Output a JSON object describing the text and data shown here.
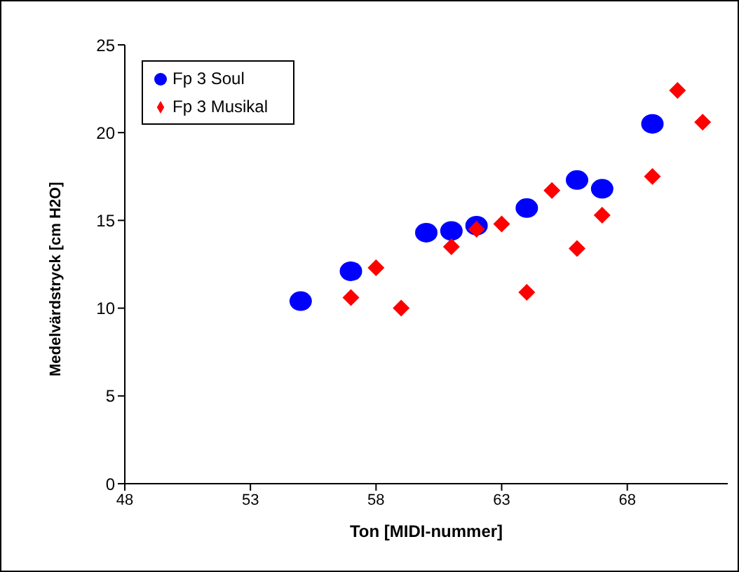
{
  "chart_data": {
    "type": "scatter",
    "xlabel": "Ton [MIDI-nummer]",
    "ylabel": "Medelvärdstryck [cm H2O]",
    "xlim": [
      48,
      72
    ],
    "xticks": [
      48,
      53,
      58,
      63,
      68
    ],
    "ylim": [
      0,
      25
    ],
    "yticks": [
      0,
      5,
      10,
      15,
      20,
      25
    ],
    "grid": false,
    "legend": "top left",
    "series": [
      {
        "name": "Fp 3 Soul",
        "color": "#0000ff",
        "marker": "circle",
        "x": [
          55,
          57,
          60,
          61,
          62,
          64,
          66,
          67,
          69
        ],
        "values": [
          10.4,
          12.1,
          14.3,
          14.4,
          14.7,
          15.7,
          17.3,
          16.8,
          20.5
        ]
      },
      {
        "name": "Fp 3 Musikal",
        "color": "#ff0000",
        "marker": "diamond",
        "x": [
          57,
          58,
          59,
          61,
          62,
          63,
          64,
          65,
          66,
          67,
          69,
          70,
          71
        ],
        "values": [
          10.6,
          12.3,
          10.0,
          13.5,
          14.5,
          14.8,
          10.9,
          16.7,
          13.4,
          15.3,
          17.5,
          22.4,
          20.6
        ]
      }
    ]
  }
}
